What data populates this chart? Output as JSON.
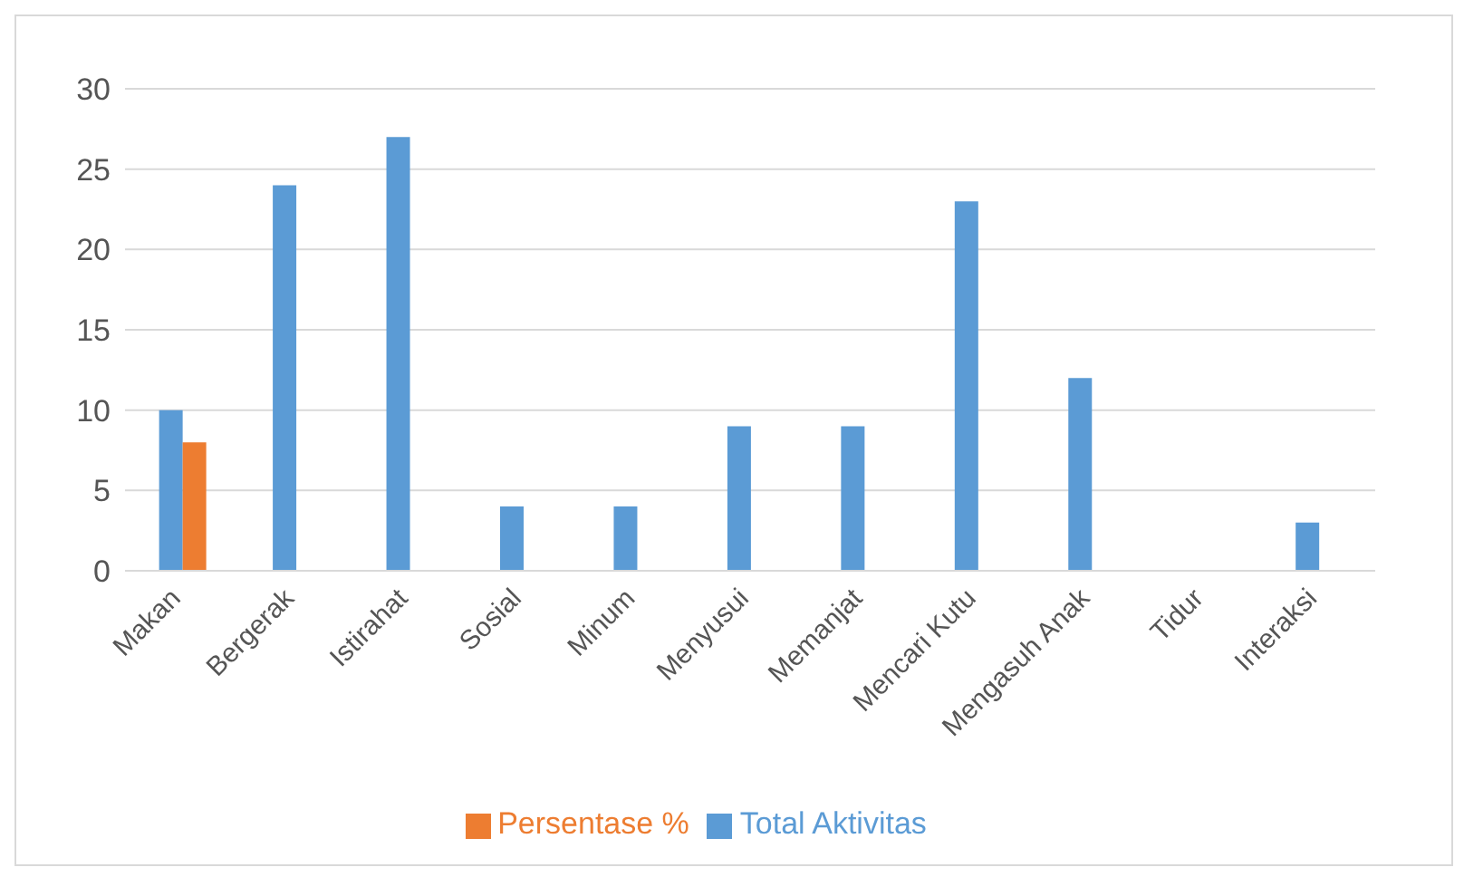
{
  "chart_data": {
    "type": "bar",
    "categories": [
      "Makan",
      "Bergerak",
      "Istirahat",
      "Sosial",
      "Minum",
      "Menyusui",
      "Memanjat",
      "Mencari Kutu",
      "Mengasuh Anak",
      "Tidur",
      "Interaksi"
    ],
    "series": [
      {
        "name": "Total Aktivitas",
        "color": "#5b9bd5",
        "values": [
          10,
          24,
          27,
          4,
          4,
          9,
          9,
          23,
          12,
          0,
          3
        ]
      },
      {
        "name": "Persentase %",
        "color": "#ed7d31",
        "values": [
          8,
          0,
          0,
          0,
          0,
          0,
          0,
          0,
          0,
          0,
          0
        ]
      }
    ],
    "ylim": [
      0,
      30
    ],
    "yticks": [
      0,
      5,
      10,
      15,
      20,
      25,
      30
    ],
    "grid": "y",
    "legend": "bottom"
  }
}
